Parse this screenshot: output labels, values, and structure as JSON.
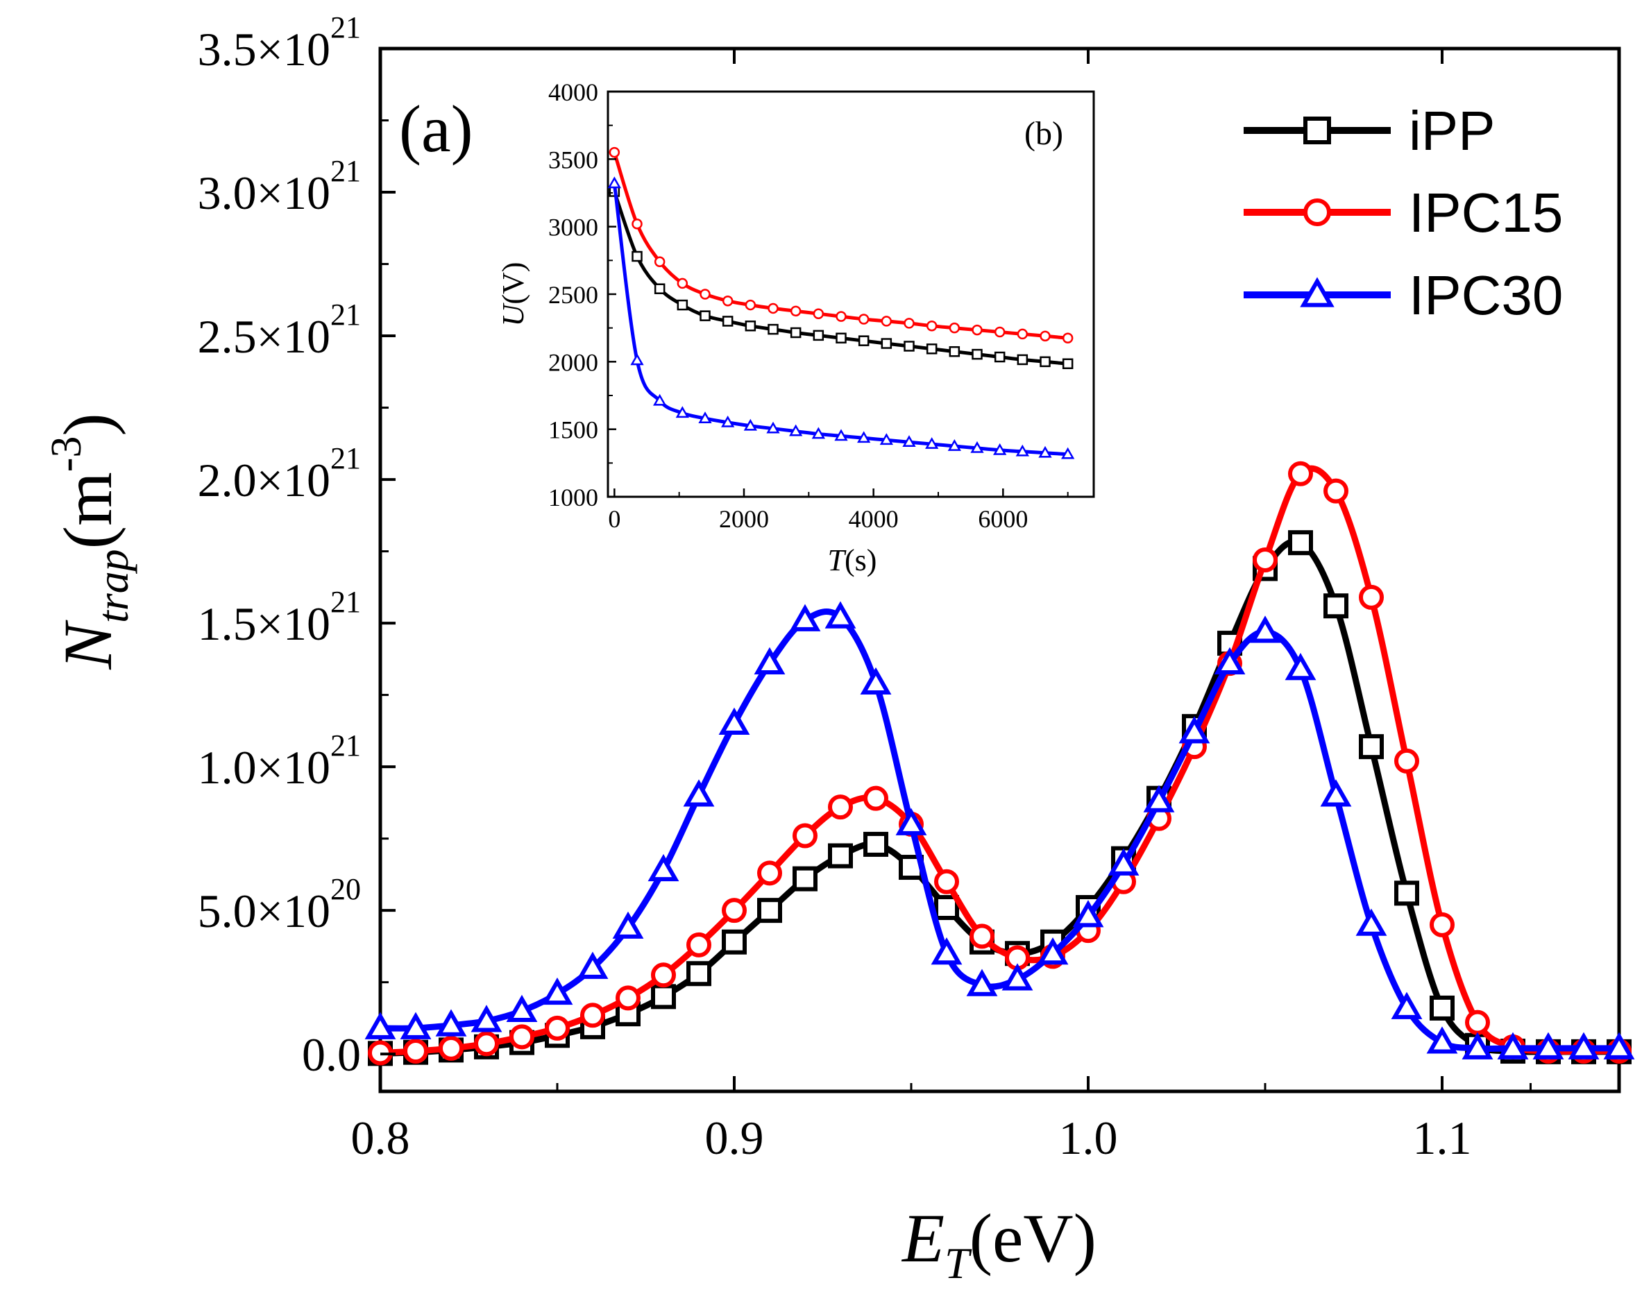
{
  "chart_data": [
    {
      "panel": "(a)",
      "type": "line",
      "xlabel": {
        "main": "E",
        "sub": "T",
        "unit": "(eV)"
      },
      "ylabel": {
        "main": "N",
        "sub": "trap",
        "unit": "(m",
        "sup": "-3",
        "close": ")"
      },
      "xlim": [
        0.8,
        1.15
      ],
      "ylim": [
        -1.3e+20,
        3.5e+21
      ],
      "xticks": [
        {
          "value": 0.8,
          "label": "0.8"
        },
        {
          "value": 0.9,
          "label": "0.9"
        },
        {
          "value": 1.0,
          "label": "1.0"
        },
        {
          "value": 1.1,
          "label": "1.1"
        }
      ],
      "yticks": [
        {
          "value": 0,
          "mant": "0.0",
          "exp": ""
        },
        {
          "value": 5e+20,
          "mant": "5.0×10",
          "exp": "20"
        },
        {
          "value": 1e+21,
          "mant": "1.0×10",
          "exp": "21"
        },
        {
          "value": 1.5e+21,
          "mant": "1.5×10",
          "exp": "21"
        },
        {
          "value": 2e+21,
          "mant": "2.0×10",
          "exp": "21"
        },
        {
          "value": 2.5e+21,
          "mant": "2.5×10",
          "exp": "21"
        },
        {
          "value": 3e+21,
          "mant": "3.0×10",
          "exp": "21"
        },
        {
          "value": 3.5e+21,
          "mant": "3.5×10",
          "exp": "21"
        }
      ],
      "legend_position": "top-right",
      "series": [
        {
          "name": "iPP",
          "color": "#000000",
          "marker": "square",
          "x": [
            0.8,
            0.81,
            0.82,
            0.83,
            0.84,
            0.85,
            0.86,
            0.87,
            0.88,
            0.89,
            0.9,
            0.91,
            0.92,
            0.93,
            0.94,
            0.95,
            0.96,
            0.97,
            0.98,
            0.99,
            1.0,
            1.01,
            1.02,
            1.03,
            1.04,
            1.05,
            1.06,
            1.07,
            1.08,
            1.09,
            1.1,
            1.11,
            1.12,
            1.13,
            1.14,
            1.15
          ],
          "y": [
            2e+18,
            6e+18,
            1.4e+19,
            2.5e+19,
            4e+19,
            6.5e+19,
            9.5e+19,
            1.4e+20,
            2e+20,
            2.8e+20,
            3.9e+20,
            5e+20,
            6.1e+20,
            6.9e+20,
            7.3e+20,
            6.5e+20,
            5.1e+20,
            3.9e+20,
            3.5e+20,
            3.9e+20,
            5.1e+20,
            6.8e+20,
            8.9e+20,
            1.14e+21,
            1.43e+21,
            1.69e+21,
            1.78e+21,
            1.56e+21,
            1.07e+21,
            5.6e+20,
            1.6e+20,
            3e+19,
            1e+19,
            8e+18,
            8e+18,
            8e+18
          ]
        },
        {
          "name": "IPC15",
          "color": "#ff0000",
          "marker": "circle",
          "x": [
            0.8,
            0.81,
            0.82,
            0.83,
            0.84,
            0.85,
            0.86,
            0.87,
            0.88,
            0.89,
            0.9,
            0.91,
            0.92,
            0.93,
            0.94,
            0.95,
            0.96,
            0.97,
            0.98,
            0.99,
            1.0,
            1.01,
            1.02,
            1.03,
            1.04,
            1.05,
            1.06,
            1.07,
            1.08,
            1.09,
            1.1,
            1.11,
            1.12,
            1.13,
            1.14,
            1.15
          ],
          "y": [
            4e+18,
            1e+19,
            2e+19,
            3.6e+19,
            6e+19,
            9e+19,
            1.35e+20,
            1.95e+20,
            2.75e+20,
            3.8e+20,
            5e+20,
            6.3e+20,
            7.6e+20,
            8.6e+20,
            8.9e+20,
            8e+20,
            6e+20,
            4.1e+20,
            3.35e+20,
            3.4e+20,
            4.3e+20,
            6e+20,
            8.2e+20,
            1.07e+21,
            1.36e+21,
            1.72e+21,
            2.02e+21,
            1.96e+21,
            1.59e+21,
            1.02e+21,
            4.5e+20,
            1.1e+20,
            2.5e+19,
            1e+19,
            1e+19,
            1e+19
          ]
        },
        {
          "name": "IPC30",
          "color": "#0000ff",
          "marker": "triangle",
          "x": [
            0.8,
            0.81,
            0.82,
            0.83,
            0.84,
            0.85,
            0.86,
            0.87,
            0.88,
            0.89,
            0.9,
            0.91,
            0.92,
            0.93,
            0.94,
            0.95,
            0.96,
            0.97,
            0.98,
            0.99,
            1.0,
            1.01,
            1.02,
            1.03,
            1.04,
            1.05,
            1.06,
            1.07,
            1.08,
            1.09,
            1.1,
            1.11,
            1.12,
            1.13,
            1.14,
            1.15
          ],
          "y": [
            9e+19,
            9e+19,
            1e+20,
            1.15e+20,
            1.5e+20,
            2.1e+20,
            3e+20,
            4.4e+20,
            6.4e+20,
            9e+20,
            1.15e+21,
            1.36e+21,
            1.51e+21,
            1.52e+21,
            1.29e+21,
            8e+20,
            3.5e+20,
            2.4e+20,
            2.6e+20,
            3.5e+20,
            4.8e+20,
            6.6e+20,
            8.8e+20,
            1.12e+21,
            1.36e+21,
            1.47e+21,
            1.34e+21,
            9e+20,
            4.5e+20,
            1.6e+20,
            4e+19,
            2e+19,
            2e+19,
            2e+19,
            2e+19,
            2e+19
          ]
        }
      ]
    },
    {
      "panel": "(b)",
      "type": "line",
      "xlabel": {
        "main": "T",
        "unit": "(s)"
      },
      "ylabel": {
        "main": "U",
        "unit": "(V)"
      },
      "xlim": [
        -100,
        7400
      ],
      "ylim": [
        1000,
        4000
      ],
      "xticks": [
        0,
        2000,
        4000,
        6000
      ],
      "yticks": [
        1000,
        1500,
        2000,
        2500,
        3000,
        3500,
        4000
      ],
      "series": [
        {
          "name": "iPP",
          "color": "#000000",
          "marker": "square",
          "x": [
            0,
            350,
            700,
            1050,
            1400,
            1750,
            2100,
            2450,
            2800,
            3150,
            3500,
            3850,
            4200,
            4550,
            4900,
            5250,
            5600,
            5950,
            6300,
            6650,
            7000
          ],
          "y": [
            3260,
            2780,
            2540,
            2420,
            2340,
            2300,
            2265,
            2240,
            2215,
            2195,
            2175,
            2155,
            2135,
            2115,
            2095,
            2075,
            2055,
            2035,
            2015,
            2000,
            1985
          ]
        },
        {
          "name": "IPC15",
          "color": "#ff0000",
          "marker": "circle",
          "x": [
            0,
            350,
            700,
            1050,
            1400,
            1750,
            2100,
            2450,
            2800,
            3150,
            3500,
            3850,
            4200,
            4550,
            4900,
            5250,
            5600,
            5950,
            6300,
            6650,
            7000
          ],
          "y": [
            3550,
            3020,
            2740,
            2580,
            2500,
            2450,
            2420,
            2395,
            2375,
            2355,
            2335,
            2315,
            2300,
            2285,
            2265,
            2250,
            2235,
            2220,
            2205,
            2190,
            2175
          ]
        },
        {
          "name": "IPC30",
          "color": "#0000ff",
          "marker": "triangle",
          "x": [
            0,
            350,
            700,
            1050,
            1400,
            1750,
            2100,
            2450,
            2800,
            3150,
            3500,
            3850,
            4200,
            4550,
            4900,
            5250,
            5600,
            5950,
            6300,
            6650,
            7000
          ],
          "y": [
            3320,
            2010,
            1710,
            1620,
            1580,
            1550,
            1525,
            1505,
            1485,
            1465,
            1450,
            1435,
            1420,
            1405,
            1390,
            1375,
            1360,
            1345,
            1335,
            1325,
            1315
          ]
        }
      ]
    }
  ]
}
